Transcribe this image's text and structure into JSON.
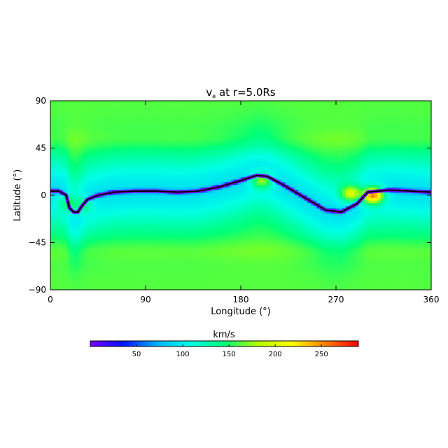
{
  "chart_data": {
    "type": "heatmap",
    "title_main": "v",
    "title_sub": "e",
    "title_rest": " at r=5.0Rs",
    "xlabel": "Longitude (°)",
    "ylabel": "Latitude (°)",
    "xlim": [
      0,
      360
    ],
    "ylim": [
      -90,
      90
    ],
    "xticks": [
      0,
      90,
      180,
      270,
      360
    ],
    "yticks": [
      90,
      45,
      0,
      -45,
      -90
    ],
    "colorbar": {
      "label": "km/s",
      "range": [
        0,
        290
      ],
      "ticks": [
        50,
        100,
        150,
        200,
        250
      ],
      "colors": [
        "#7a00ff",
        "#0014ff",
        "#00b4ff",
        "#00ffe6",
        "#00ff78",
        "#b4ff00",
        "#ffff00",
        "#ff8000",
        "#ff0000"
      ]
    },
    "field": {
      "polar_speed": 162,
      "equatorial_band_speed": 95,
      "neutral_line": [
        [
          0,
          4
        ],
        [
          8,
          4
        ],
        [
          15,
          0
        ],
        [
          18,
          -12
        ],
        [
          22,
          -16
        ],
        [
          26,
          -16
        ],
        [
          30,
          -10
        ],
        [
          35,
          -4
        ],
        [
          45,
          0
        ],
        [
          60,
          3
        ],
        [
          80,
          4
        ],
        [
          100,
          4
        ],
        [
          120,
          3
        ],
        [
          140,
          4
        ],
        [
          160,
          8
        ],
        [
          180,
          14
        ],
        [
          195,
          19
        ],
        [
          205,
          18
        ],
        [
          220,
          10
        ],
        [
          240,
          -2
        ],
        [
          260,
          -14
        ],
        [
          275,
          -16
        ],
        [
          290,
          -8
        ],
        [
          300,
          3
        ],
        [
          320,
          5
        ],
        [
          340,
          4
        ],
        [
          360,
          3
        ]
      ],
      "features": [
        {
          "lon": 200,
          "lat": 14,
          "speed": 175
        },
        {
          "lon": 284,
          "lat": 2,
          "speed": 200
        },
        {
          "lon": 305,
          "lat": 0,
          "speed": 255
        },
        {
          "lon": 18,
          "lat": -8,
          "speed": 150
        },
        {
          "lon": 30,
          "lat": -10,
          "speed": 140
        }
      ]
    }
  }
}
